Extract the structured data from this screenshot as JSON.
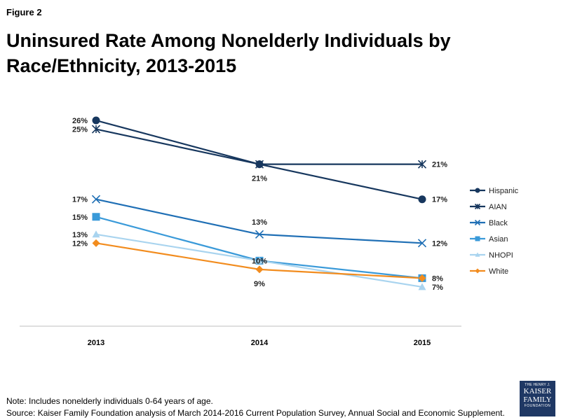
{
  "figure_label": "Figure 2",
  "logo": {
    "line1": "THE HENRY J.",
    "line2": "KAISER",
    "line3": "FAMILY",
    "line4": "FOUNDATION"
  },
  "note": "Note: Includes nonelderly individuals 0-64 years of age.",
  "source": "Source: Kaiser Family Foundation  analysis of March 2014-2016 Current Population Survey, Annual Social and Economic Supplement.",
  "colors": {
    "hispanic": "#17375e",
    "aian": "#17375e",
    "black": "#1f6fb5",
    "asian": "#3a9ad9",
    "nhopi": "#a9d4ef",
    "white": "#f28c1e"
  },
  "chart_data": {
    "type": "line",
    "title": "Uninsured Rate Among Nonelderly Individuals by Race/Ethnicity, 2013-2015",
    "xlabel": "",
    "ylabel": "",
    "categories": [
      "2013",
      "2014",
      "2015"
    ],
    "ylim": [
      3,
      28
    ],
    "grid": false,
    "legend": "right",
    "series": [
      {
        "key": "hispanic",
        "name": "Hispanic",
        "marker": "circle",
        "values": [
          26,
          21,
          17
        ],
        "labels": [
          "26%",
          "21%",
          "17%"
        ],
        "label_pos": [
          "left",
          "below",
          "right"
        ]
      },
      {
        "key": "aian",
        "name": "AIAN",
        "marker": "star",
        "values": [
          25,
          21,
          21
        ],
        "labels": [
          "25%",
          "",
          "21%"
        ],
        "label_pos": [
          "left",
          "below",
          "right"
        ]
      },
      {
        "key": "black",
        "name": "Black",
        "marker": "x",
        "values": [
          17,
          13,
          12
        ],
        "labels": [
          "17%",
          "13%",
          "12%"
        ],
        "label_pos": [
          "left",
          "above",
          "right"
        ]
      },
      {
        "key": "asian",
        "name": "Asian",
        "marker": "square",
        "values": [
          15,
          10,
          8
        ],
        "labels": [
          "15%",
          "10%",
          "8%"
        ],
        "label_pos": [
          "left",
          "center",
          "right"
        ]
      },
      {
        "key": "nhopi",
        "name": "NHOPI",
        "marker": "triangle",
        "values": [
          13,
          10,
          7
        ],
        "labels": [
          "13%",
          "",
          "7%"
        ],
        "label_pos": [
          "left",
          "center",
          "right"
        ]
      },
      {
        "key": "white",
        "name": "White",
        "marker": "diamond",
        "values": [
          12,
          9,
          8
        ],
        "labels": [
          "12%",
          "9%",
          ""
        ],
        "label_pos": [
          "left",
          "below",
          "right"
        ]
      }
    ]
  }
}
